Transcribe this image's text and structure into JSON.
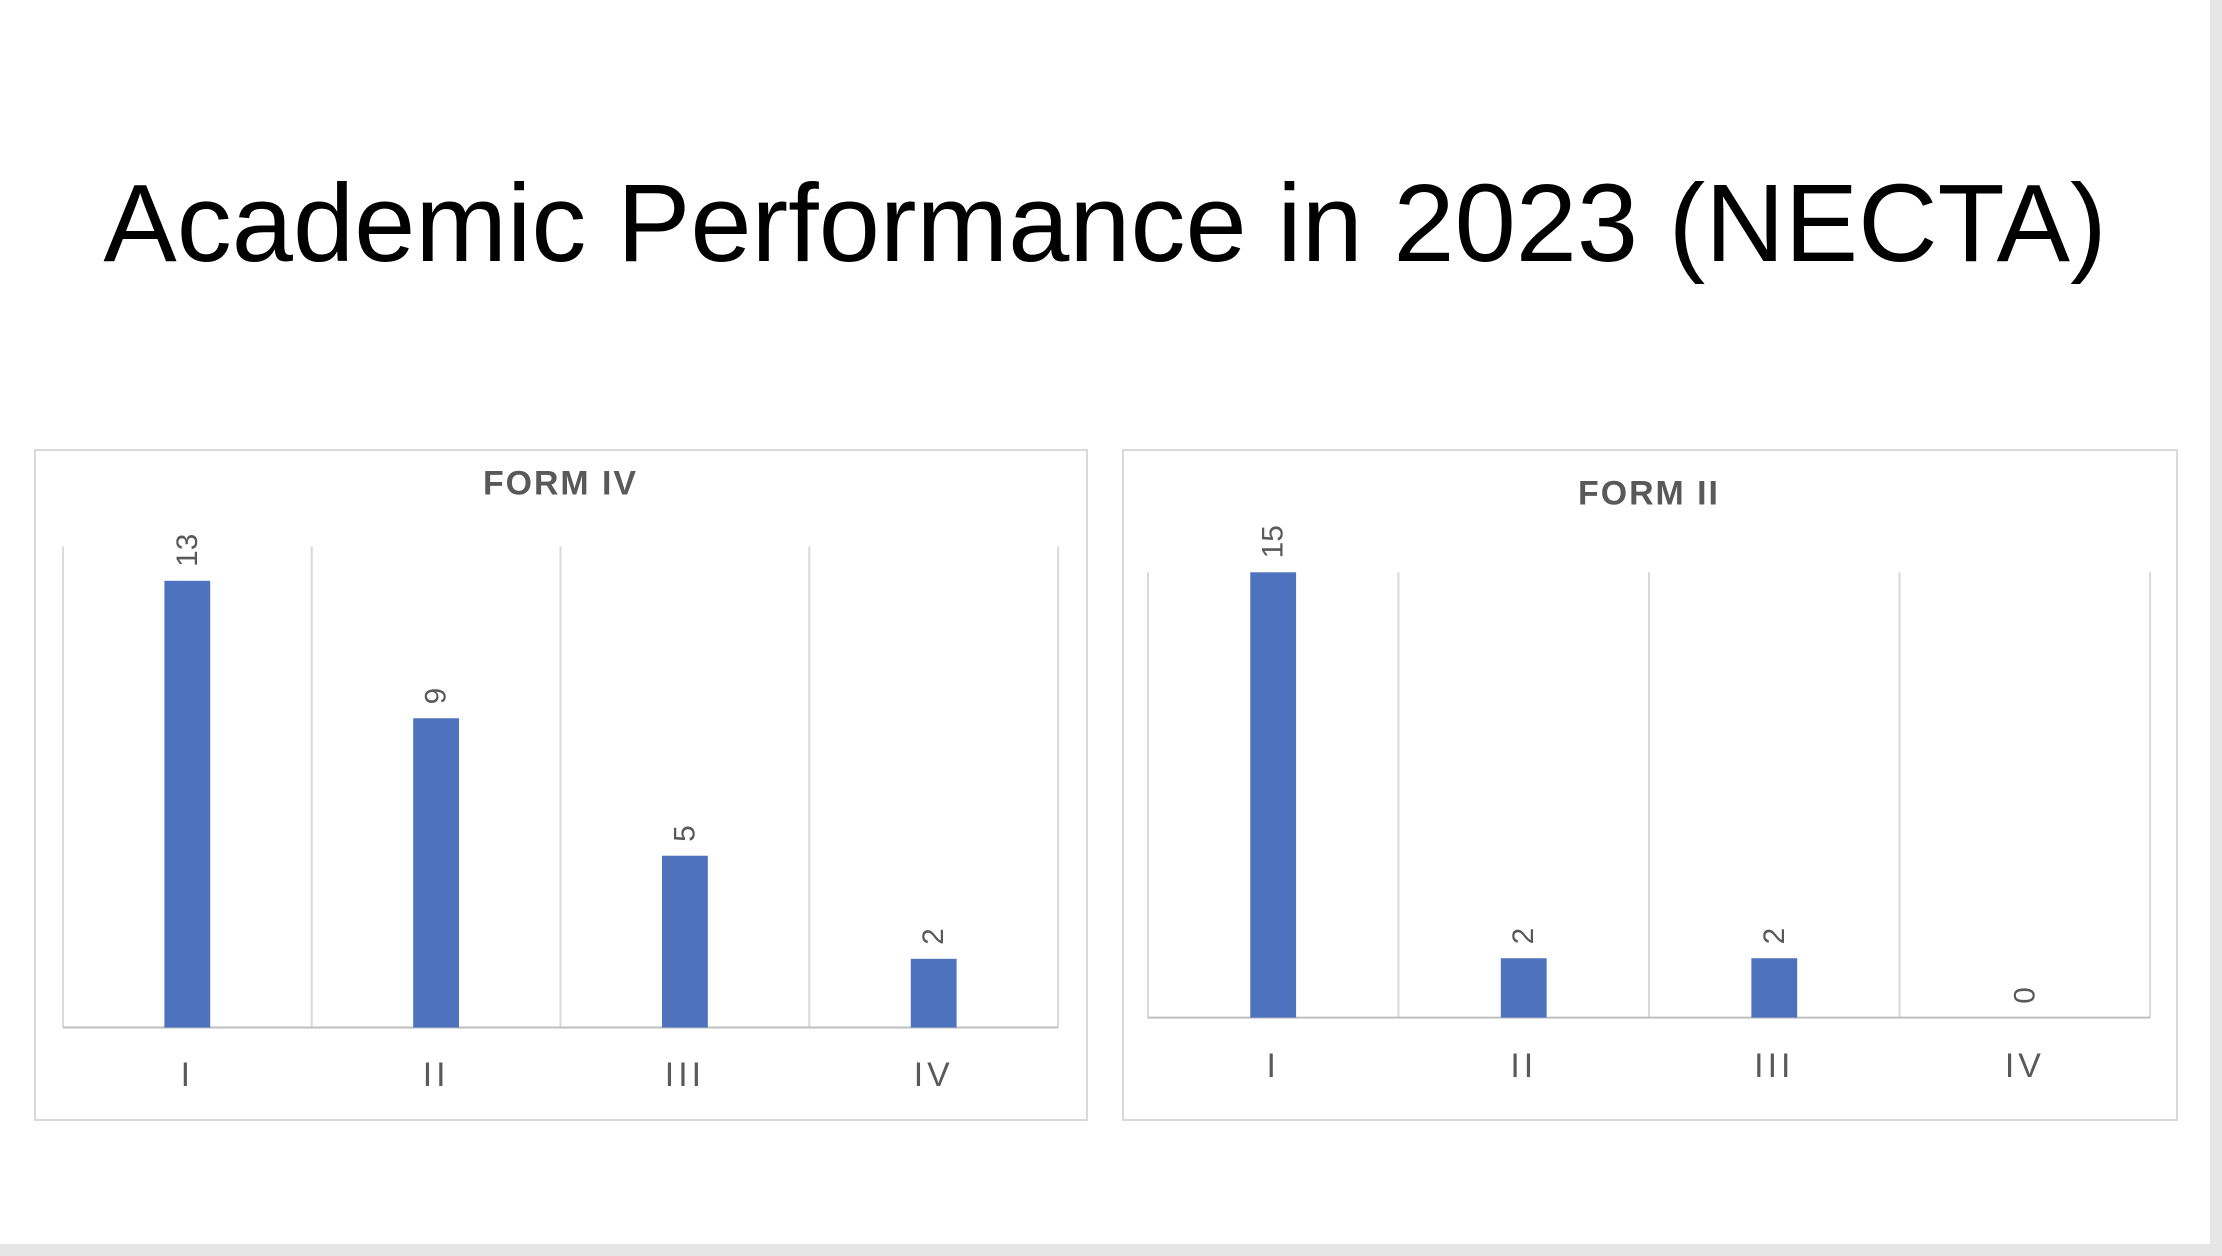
{
  "slide": {
    "title": "Academic Performance in 2023 (NECTA)"
  },
  "colors": {
    "bar": "#4e72be",
    "grid": "#d9d9d9",
    "axis": "#bfbfbf",
    "text": "#595959"
  },
  "chart_data": [
    {
      "type": "bar",
      "title": "FORM IV",
      "categories": [
        "I",
        "II",
        "III",
        "IV"
      ],
      "values": [
        13,
        9,
        5,
        2
      ],
      "ylim": [
        0,
        14
      ],
      "xlabel": "",
      "ylabel": "",
      "grid": true,
      "data_labels": true
    },
    {
      "type": "bar",
      "title": "FORM II",
      "categories": [
        "I",
        "II",
        "III",
        "IV"
      ],
      "values": [
        15,
        2,
        2,
        0
      ],
      "ylim": [
        0,
        15
      ],
      "xlabel": "",
      "ylabel": "",
      "grid": true,
      "data_labels": true
    }
  ]
}
